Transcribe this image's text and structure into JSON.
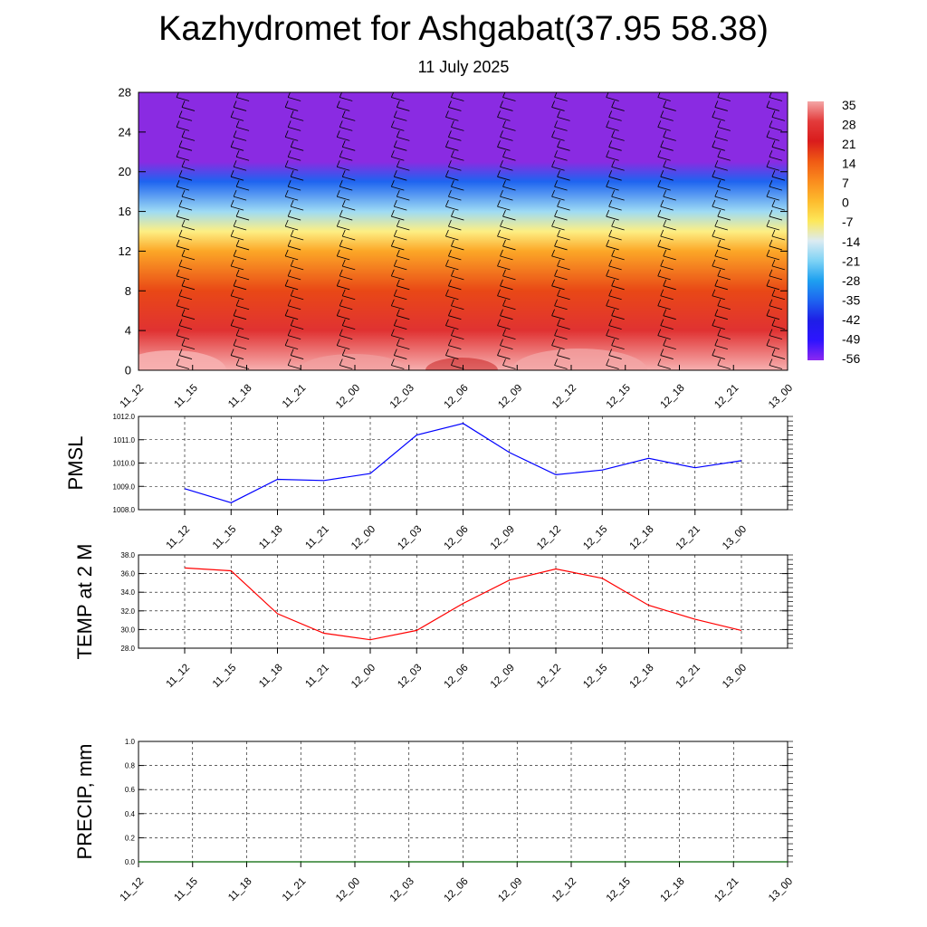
{
  "title": "Kazhydromet for Ashgabat(37.95 58.38)",
  "subtitle": "11 July 2025",
  "colors": {
    "pmsl_line": "#0000ff",
    "temp_line": "#ff0000",
    "precip_line": "#006400",
    "grid": "#000000"
  },
  "chart_data": [
    {
      "id": "cross-section",
      "type": "heatmap",
      "title": "",
      "ylabel": "",
      "ylim": [
        0,
        28
      ],
      "yticks": [
        0,
        4,
        8,
        12,
        16,
        20,
        24,
        28
      ],
      "x": [
        "11_12",
        "11_15",
        "11_18",
        "11_21",
        "12_00",
        "12_03",
        "12_06",
        "12_09",
        "12_12",
        "12_15",
        "12_18",
        "12_21",
        "13_00"
      ],
      "description_values": "temperature contour fill vs height (levels 0-28) with wind barbs",
      "colorbar": {
        "labels": [
          "35",
          "28",
          "21",
          "14",
          "7",
          "0",
          "-7",
          "-14",
          "-21",
          "-28",
          "-35",
          "-42",
          "-49",
          "-56"
        ],
        "colors": [
          "#f4a6a6",
          "#e33b3b",
          "#d91c1c",
          "#f05a14",
          "#fa8c1e",
          "#fdbb2d",
          "#fde85a",
          "#dcebf2",
          "#7fd3f5",
          "#1ea0f0",
          "#1e64f0",
          "#1e1ee6",
          "#2d14ff",
          "#8c28f0"
        ]
      },
      "temperature_profile": [
        {
          "level": 0,
          "value": 36
        },
        {
          "level": 4,
          "value": 26
        },
        {
          "level": 8,
          "value": 16
        },
        {
          "level": 12,
          "value": 3
        },
        {
          "level": 14,
          "value": -10
        },
        {
          "level": 16,
          "value": -20
        },
        {
          "level": 19,
          "value": -38
        },
        {
          "level": 21,
          "value": -58
        },
        {
          "level": 24,
          "value": -62
        },
        {
          "level": 28,
          "value": -62
        }
      ]
    },
    {
      "id": "pmsl",
      "type": "line",
      "ylabel": "PMSL",
      "ylim": [
        1008.0,
        1012.0
      ],
      "ytick_labels": [
        "1008.0",
        "1009.0",
        "1010.0",
        "1011.0",
        "1012.0"
      ],
      "x": [
        "11_12",
        "11_15",
        "11_18",
        "11_21",
        "12_00",
        "12_03",
        "12_06",
        "12_09",
        "12_12",
        "12_15",
        "12_18",
        "12_21",
        "13_00"
      ],
      "values": [
        1008.9,
        1008.3,
        1009.3,
        1009.25,
        1009.55,
        1011.2,
        1011.7,
        1010.45,
        1009.5,
        1009.7,
        1010.2,
        1009.8,
        1010.1
      ]
    },
    {
      "id": "temp2m",
      "type": "line",
      "ylabel": "TEMP at 2 M",
      "ylim": [
        28.0,
        38.0
      ],
      "ytick_labels": [
        "28.0",
        "30.0",
        "32.0",
        "34.0",
        "36.0",
        "38.0"
      ],
      "x": [
        "11_12",
        "11_15",
        "11_18",
        "11_21",
        "12_00",
        "12_03",
        "12_06",
        "12_09",
        "12_12",
        "12_15",
        "12_18",
        "12_21",
        "13_00"
      ],
      "values": [
        36.6,
        36.3,
        31.7,
        29.6,
        28.9,
        29.9,
        32.8,
        35.3,
        36.5,
        35.5,
        32.6,
        31.1,
        29.9
      ]
    },
    {
      "id": "precip",
      "type": "line",
      "ylabel": "PRECIP, mm",
      "ylim": [
        0.0,
        1.0
      ],
      "ytick_labels": [
        "0.0",
        "0.2",
        "0.4",
        "0.6",
        "0.8",
        "1.0"
      ],
      "x": [
        "11_12",
        "11_15",
        "11_18",
        "11_21",
        "12_00",
        "12_03",
        "12_06",
        "12_09",
        "12_12",
        "12_15",
        "12_18",
        "12_21",
        "13_00"
      ],
      "values": [
        0,
        0,
        0,
        0,
        0,
        0,
        0,
        0,
        0,
        0,
        0,
        0,
        0
      ]
    }
  ]
}
